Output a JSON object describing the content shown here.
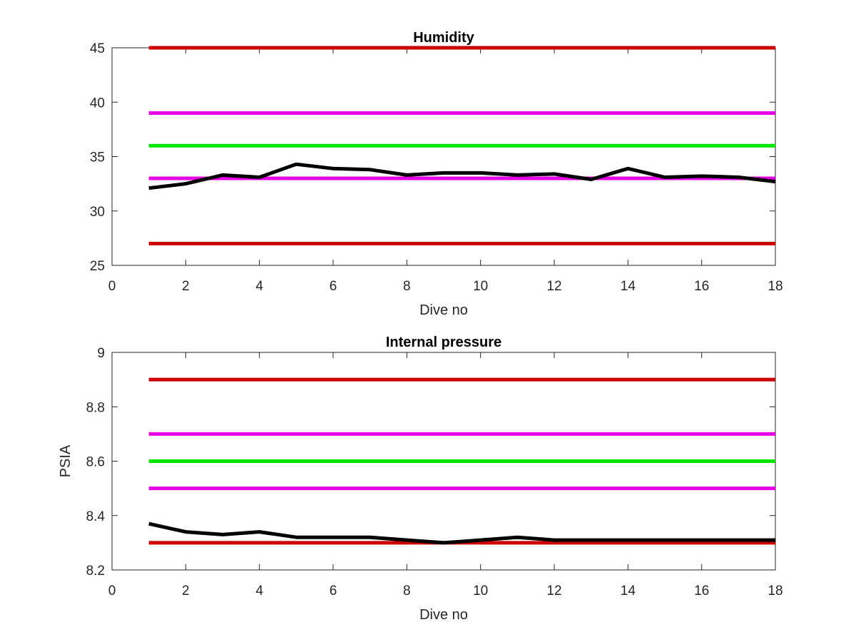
{
  "chart_data": [
    {
      "type": "line",
      "title": "Humidity",
      "xlabel": "Dive no",
      "ylabel": "",
      "xlim": [
        0,
        18
      ],
      "ylim": [
        25,
        45
      ],
      "x_ticks": [
        0,
        2,
        4,
        6,
        8,
        10,
        12,
        14,
        16,
        18
      ],
      "y_ticks": [
        25,
        30,
        35,
        40,
        45
      ],
      "grid": false,
      "legend": "none",
      "reference_lines": [
        {
          "y": 45,
          "color": "#cc0000"
        },
        {
          "y": 39,
          "color": "#e600e6"
        },
        {
          "y": 36,
          "color": "#00e600"
        },
        {
          "y": 33,
          "color": "#e600e6"
        },
        {
          "y": 27,
          "color": "#cc0000"
        }
      ],
      "series": [
        {
          "color": "#000000",
          "x": [
            1,
            2,
            3,
            4,
            5,
            6,
            7,
            8,
            9,
            10,
            11,
            12,
            13,
            14,
            15,
            16,
            17,
            18
          ],
          "y": [
            32.1,
            32.5,
            33.3,
            33.1,
            34.3,
            33.9,
            33.8,
            33.3,
            33.5,
            33.5,
            33.3,
            33.4,
            32.9,
            33.9,
            33.1,
            33.2,
            33.1,
            32.7
          ]
        }
      ]
    },
    {
      "type": "line",
      "title": "Internal pressure",
      "xlabel": "Dive no",
      "ylabel": "PSIA",
      "xlim": [
        0,
        18
      ],
      "ylim": [
        8.2,
        9
      ],
      "x_ticks": [
        0,
        2,
        4,
        6,
        8,
        10,
        12,
        14,
        16,
        18
      ],
      "y_ticks": [
        8.2,
        8.4,
        8.6,
        8.8,
        9
      ],
      "y_tick_labels": [
        "8.2",
        "8.4",
        "8.6",
        "8.8",
        "9"
      ],
      "grid": false,
      "legend": "none",
      "reference_lines": [
        {
          "y": 8.9,
          "color": "#cc0000"
        },
        {
          "y": 8.7,
          "color": "#e600e6"
        },
        {
          "y": 8.6,
          "color": "#00e600"
        },
        {
          "y": 8.5,
          "color": "#e600e6"
        },
        {
          "y": 8.3,
          "color": "#cc0000"
        }
      ],
      "series": [
        {
          "color": "#000000",
          "x": [
            1,
            2,
            3,
            4,
            5,
            6,
            7,
            8,
            9,
            10,
            11,
            12,
            13,
            14,
            15,
            16,
            17,
            18
          ],
          "y": [
            8.37,
            8.34,
            8.33,
            8.34,
            8.32,
            8.32,
            8.32,
            8.31,
            8.3,
            8.31,
            8.32,
            8.31,
            8.31,
            8.31,
            8.31,
            8.31,
            8.31,
            8.31
          ]
        }
      ]
    }
  ]
}
